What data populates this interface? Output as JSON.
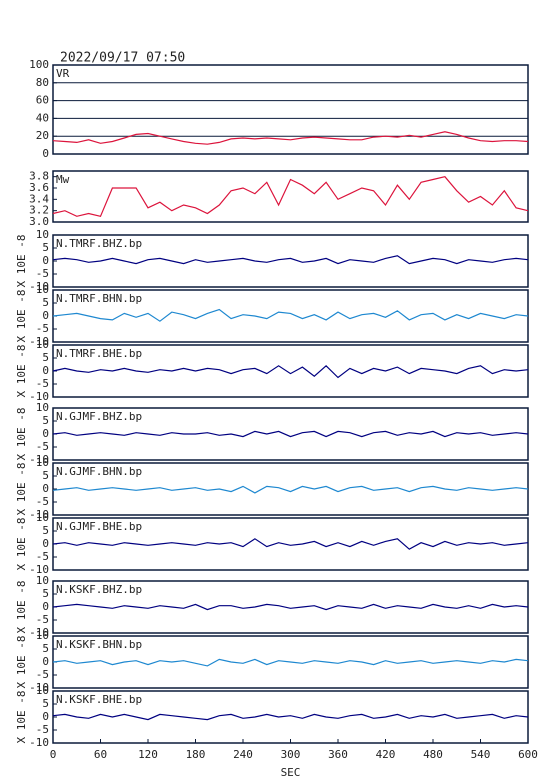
{
  "chart_data": [
    {
      "type": "line",
      "title": "2022/09/17 07:50",
      "label": "VR",
      "color": "#dc143c",
      "grid": true,
      "ylim": [
        0,
        100
      ],
      "yticks": [
        0,
        20,
        40,
        60,
        80,
        100
      ],
      "xlim": [
        0,
        600
      ],
      "x": [
        0,
        15,
        30,
        45,
        60,
        75,
        90,
        105,
        120,
        135,
        150,
        165,
        180,
        195,
        210,
        225,
        240,
        255,
        270,
        285,
        300,
        315,
        330,
        345,
        360,
        375,
        390,
        405,
        420,
        435,
        450,
        465,
        480,
        495,
        510,
        525,
        540,
        555,
        570,
        585,
        600
      ],
      "values": [
        15,
        14,
        13,
        16,
        12,
        14,
        18,
        22,
        23,
        20,
        17,
        14,
        12,
        11,
        13,
        17,
        18,
        17,
        18,
        17,
        16,
        18,
        19,
        18,
        17,
        16,
        16,
        19,
        20,
        19,
        21,
        19,
        22,
        25,
        22,
        18,
        15,
        14,
        15,
        15,
        14
      ]
    },
    {
      "type": "line",
      "label": "Mw",
      "color": "#dc143c",
      "ylim": [
        3.0,
        3.9
      ],
      "yticks": [
        {
          "value": 3,
          "label": "3.0"
        },
        3.2,
        3.4,
        3.6,
        3.8
      ],
      "xlim": [
        0,
        600
      ],
      "x": [
        0,
        15,
        30,
        45,
        60,
        75,
        90,
        105,
        120,
        135,
        150,
        165,
        180,
        195,
        210,
        225,
        240,
        255,
        270,
        285,
        300,
        315,
        330,
        345,
        360,
        375,
        390,
        405,
        420,
        435,
        450,
        465,
        480,
        495,
        510,
        525,
        540,
        555,
        570,
        585,
        600
      ],
      "values": [
        3.15,
        3.2,
        3.1,
        3.15,
        3.1,
        3.6,
        3.6,
        3.6,
        3.25,
        3.35,
        3.2,
        3.3,
        3.25,
        3.15,
        3.3,
        3.55,
        3.6,
        3.5,
        3.7,
        3.3,
        3.75,
        3.65,
        3.5,
        3.7,
        3.4,
        3.5,
        3.6,
        3.55,
        3.3,
        3.65,
        3.4,
        3.7,
        3.75,
        3.8,
        3.55,
        3.35,
        3.45,
        3.3,
        3.55,
        3.25,
        3.2
      ]
    },
    {
      "type": "line",
      "label": "N.TMRF.BHZ.bp",
      "ylabel": "X 10E -8",
      "color": "#000080",
      "ylim": [
        -10,
        10
      ],
      "yticks": [
        -10,
        -5,
        0,
        5,
        10
      ],
      "xlim": [
        0,
        600
      ],
      "x": [
        0,
        15,
        30,
        45,
        60,
        75,
        90,
        105,
        120,
        135,
        150,
        165,
        180,
        195,
        210,
        225,
        240,
        255,
        270,
        285,
        300,
        315,
        330,
        345,
        360,
        375,
        390,
        405,
        420,
        435,
        450,
        465,
        480,
        495,
        510,
        525,
        540,
        555,
        570,
        585,
        600
      ],
      "values": [
        0.5,
        1,
        0.5,
        -0.5,
        0,
        1,
        0,
        -1,
        0.5,
        1,
        0,
        -1,
        0.5,
        -0.5,
        0,
        0.5,
        1,
        0,
        -0.5,
        0.5,
        1,
        -0.5,
        0,
        1,
        -1,
        0.5,
        0,
        -0.5,
        1,
        2,
        -1,
        0,
        1,
        0.5,
        -1,
        0.5,
        0,
        -0.5,
        0.5,
        1,
        0.5
      ]
    },
    {
      "type": "line",
      "label": "N.TMRF.BHN.bp",
      "ylabel": "X 10E -8",
      "color": "#1e88d0",
      "ylim": [
        -10,
        10
      ],
      "yticks": [
        -10,
        -5,
        0,
        5,
        10
      ],
      "xlim": [
        0,
        600
      ],
      "x": [
        0,
        15,
        30,
        45,
        60,
        75,
        90,
        105,
        120,
        135,
        150,
        165,
        180,
        195,
        210,
        225,
        240,
        255,
        270,
        285,
        300,
        315,
        330,
        345,
        360,
        375,
        390,
        405,
        420,
        435,
        450,
        465,
        480,
        495,
        510,
        525,
        540,
        555,
        570,
        585,
        600
      ],
      "values": [
        0,
        0.5,
        1,
        0,
        -1,
        -1.5,
        1,
        -0.5,
        1,
        -2,
        1.5,
        0.5,
        -1,
        1,
        2.5,
        -1,
        0.5,
        0,
        -1,
        1.5,
        1,
        -1,
        0.5,
        -1.5,
        1.5,
        -1,
        0.5,
        1,
        -0.5,
        2,
        -1.5,
        0.5,
        1,
        -1.5,
        0.5,
        -1,
        1,
        0,
        -1,
        0.5,
        0
      ]
    },
    {
      "type": "line",
      "label": "N.TMRF.BHE.bp",
      "ylabel": "X 10E -8",
      "color": "#000080",
      "ylim": [
        -10,
        10
      ],
      "yticks": [
        -10,
        -5,
        0,
        5,
        10
      ],
      "xlim": [
        0,
        600
      ],
      "x": [
        0,
        15,
        30,
        45,
        60,
        75,
        90,
        105,
        120,
        135,
        150,
        165,
        180,
        195,
        210,
        225,
        240,
        255,
        270,
        285,
        300,
        315,
        330,
        345,
        360,
        375,
        390,
        405,
        420,
        435,
        450,
        465,
        480,
        495,
        510,
        525,
        540,
        555,
        570,
        585,
        600
      ],
      "values": [
        0,
        1,
        0,
        -0.5,
        0.5,
        0,
        1,
        0,
        -0.5,
        0.5,
        0,
        1,
        0,
        1,
        0.5,
        -1,
        0.5,
        1,
        -1,
        2,
        -1,
        1.5,
        -2,
        2,
        -2.5,
        1,
        -1,
        1,
        0,
        1.5,
        -1,
        1,
        0.5,
        0,
        -1,
        1,
        2,
        -1,
        0.5,
        0,
        0.5
      ]
    },
    {
      "type": "line",
      "label": "N.GJMF.BHZ.bp",
      "ylabel": "X 10E -8",
      "color": "#000080",
      "ylim": [
        -10,
        10
      ],
      "yticks": [
        -10,
        -5,
        0,
        5,
        10
      ],
      "xlim": [
        0,
        600
      ],
      "x": [
        0,
        15,
        30,
        45,
        60,
        75,
        90,
        105,
        120,
        135,
        150,
        165,
        180,
        195,
        210,
        225,
        240,
        255,
        270,
        285,
        300,
        315,
        330,
        345,
        360,
        375,
        390,
        405,
        420,
        435,
        450,
        465,
        480,
        495,
        510,
        525,
        540,
        555,
        570,
        585,
        600
      ],
      "values": [
        0,
        0.5,
        -0.5,
        0,
        0.5,
        0,
        -0.5,
        0.5,
        0,
        -0.5,
        0.5,
        0,
        0,
        0.5,
        -0.5,
        0,
        -1,
        1,
        0,
        1,
        -1,
        0.5,
        1,
        -1,
        1,
        0.5,
        -1,
        0.5,
        1,
        -0.5,
        0.5,
        0,
        1,
        -1,
        0.5,
        0,
        0.5,
        -0.5,
        0,
        0.5,
        0
      ]
    },
    {
      "type": "line",
      "label": "N.GJMF.BHN.bp",
      "ylabel": "X 10E -8",
      "color": "#1e88d0",
      "ylim": [
        -10,
        10
      ],
      "yticks": [
        -10,
        -5,
        0,
        5,
        10
      ],
      "xlim": [
        0,
        600
      ],
      "x": [
        0,
        15,
        30,
        45,
        60,
        75,
        90,
        105,
        120,
        135,
        150,
        165,
        180,
        195,
        210,
        225,
        240,
        255,
        270,
        285,
        300,
        315,
        330,
        345,
        360,
        375,
        390,
        405,
        420,
        435,
        450,
        465,
        480,
        495,
        510,
        525,
        540,
        555,
        570,
        585,
        600
      ],
      "values": [
        -0.5,
        0,
        0.5,
        -0.5,
        0,
        0.5,
        0,
        -0.5,
        0,
        0.5,
        -0.5,
        0,
        0.5,
        -0.5,
        0,
        -1,
        1,
        -1.5,
        1,
        0.5,
        -1,
        1,
        0,
        1,
        -1,
        0.5,
        1,
        -0.5,
        0,
        0.5,
        -1,
        0.5,
        1,
        0,
        -0.5,
        0.5,
        0,
        -0.5,
        0,
        0.5,
        0
      ]
    },
    {
      "type": "line",
      "label": "N.GJMF.BHE.bp",
      "ylabel": "X 10E -8",
      "color": "#000080",
      "ylim": [
        -10,
        10
      ],
      "yticks": [
        -10,
        -5,
        0,
        5,
        10
      ],
      "xlim": [
        0,
        600
      ],
      "x": [
        0,
        15,
        30,
        45,
        60,
        75,
        90,
        105,
        120,
        135,
        150,
        165,
        180,
        195,
        210,
        225,
        240,
        255,
        270,
        285,
        300,
        315,
        330,
        345,
        360,
        375,
        390,
        405,
        420,
        435,
        450,
        465,
        480,
        495,
        510,
        525,
        540,
        555,
        570,
        585,
        600
      ],
      "values": [
        0,
        0.5,
        -0.5,
        0.5,
        0,
        -0.5,
        0.5,
        0,
        -0.5,
        0,
        0.5,
        0,
        -0.5,
        0.5,
        0,
        0.5,
        -1,
        2,
        -1,
        0.5,
        -0.5,
        0,
        1,
        -1,
        0.5,
        -1,
        1,
        -0.5,
        1,
        2,
        -2,
        0.5,
        -1,
        1,
        -0.5,
        0.5,
        0,
        0.5,
        -0.5,
        0,
        0.5
      ]
    },
    {
      "type": "line",
      "label": "N.KSKF.BHZ.bp",
      "ylabel": "X 10E -8",
      "color": "#000080",
      "ylim": [
        -10,
        10
      ],
      "yticks": [
        -10,
        -5,
        0,
        5,
        10
      ],
      "xlim": [
        0,
        600
      ],
      "x": [
        0,
        15,
        30,
        45,
        60,
        75,
        90,
        105,
        120,
        135,
        150,
        165,
        180,
        195,
        210,
        225,
        240,
        255,
        270,
        285,
        300,
        315,
        330,
        345,
        360,
        375,
        390,
        405,
        420,
        435,
        450,
        465,
        480,
        495,
        510,
        525,
        540,
        555,
        570,
        585,
        600
      ],
      "values": [
        0,
        0.5,
        1,
        0.5,
        0,
        -0.5,
        0.5,
        0,
        -0.5,
        0.5,
        0,
        -0.5,
        1,
        -1,
        0.5,
        0.5,
        -0.5,
        0,
        1,
        0.5,
        -0.5,
        0,
        0.5,
        -1,
        0.5,
        0,
        -0.5,
        1,
        -0.5,
        0.5,
        0,
        -0.5,
        1,
        0,
        -0.5,
        0.5,
        -0.5,
        1,
        0,
        0.5,
        0
      ]
    },
    {
      "type": "line",
      "label": "N.KSKF.BHN.bp",
      "ylabel": "X 10E -8",
      "color": "#1e88d0",
      "ylim": [
        -10,
        10
      ],
      "yticks": [
        -10,
        -5,
        0,
        5,
        10
      ],
      "xlim": [
        0,
        600
      ],
      "x": [
        0,
        15,
        30,
        45,
        60,
        75,
        90,
        105,
        120,
        135,
        150,
        165,
        180,
        195,
        210,
        225,
        240,
        255,
        270,
        285,
        300,
        315,
        330,
        345,
        360,
        375,
        390,
        405,
        420,
        435,
        450,
        465,
        480,
        495,
        510,
        525,
        540,
        555,
        570,
        585,
        600
      ],
      "values": [
        0,
        0.5,
        -0.5,
        0,
        0.5,
        -1,
        0,
        0.5,
        -1,
        0.5,
        0,
        0.5,
        -0.5,
        -1.5,
        1,
        0,
        -0.5,
        1,
        -1,
        0.5,
        0,
        -0.5,
        0.5,
        0,
        -0.5,
        0.5,
        0,
        -1,
        0.5,
        -0.5,
        0,
        0.5,
        -0.5,
        0,
        0.5,
        0,
        -0.5,
        0.5,
        0,
        1,
        0.5
      ]
    },
    {
      "type": "line",
      "label": "N.KSKF.BHE.bp",
      "ylabel": "X 10E -8",
      "color": "#000080",
      "ylim": [
        -10,
        10
      ],
      "yticks": [
        -10,
        -5,
        0,
        5,
        10
      ],
      "xlim": [
        0,
        600
      ],
      "xticks": [
        0,
        60,
        120,
        180,
        240,
        300,
        360,
        420,
        480,
        540,
        600
      ],
      "xlabel": "SEC",
      "x": [
        0,
        15,
        30,
        45,
        60,
        75,
        90,
        105,
        120,
        135,
        150,
        165,
        180,
        195,
        210,
        225,
        240,
        255,
        270,
        285,
        300,
        315,
        330,
        345,
        360,
        375,
        390,
        405,
        420,
        435,
        450,
        465,
        480,
        495,
        510,
        525,
        540,
        555,
        570,
        585,
        600
      ],
      "values": [
        0.5,
        1,
        0,
        -0.5,
        1,
        0,
        1,
        0,
        -1,
        1,
        0.5,
        0,
        -0.5,
        -1,
        0.5,
        1,
        -0.5,
        0,
        1,
        0,
        0.5,
        -0.5,
        1,
        0,
        -0.5,
        0.5,
        1,
        -0.5,
        0,
        1,
        -0.5,
        0.5,
        0,
        1,
        -0.5,
        0,
        0.5,
        1,
        -0.5,
        0.5,
        0
      ]
    }
  ]
}
